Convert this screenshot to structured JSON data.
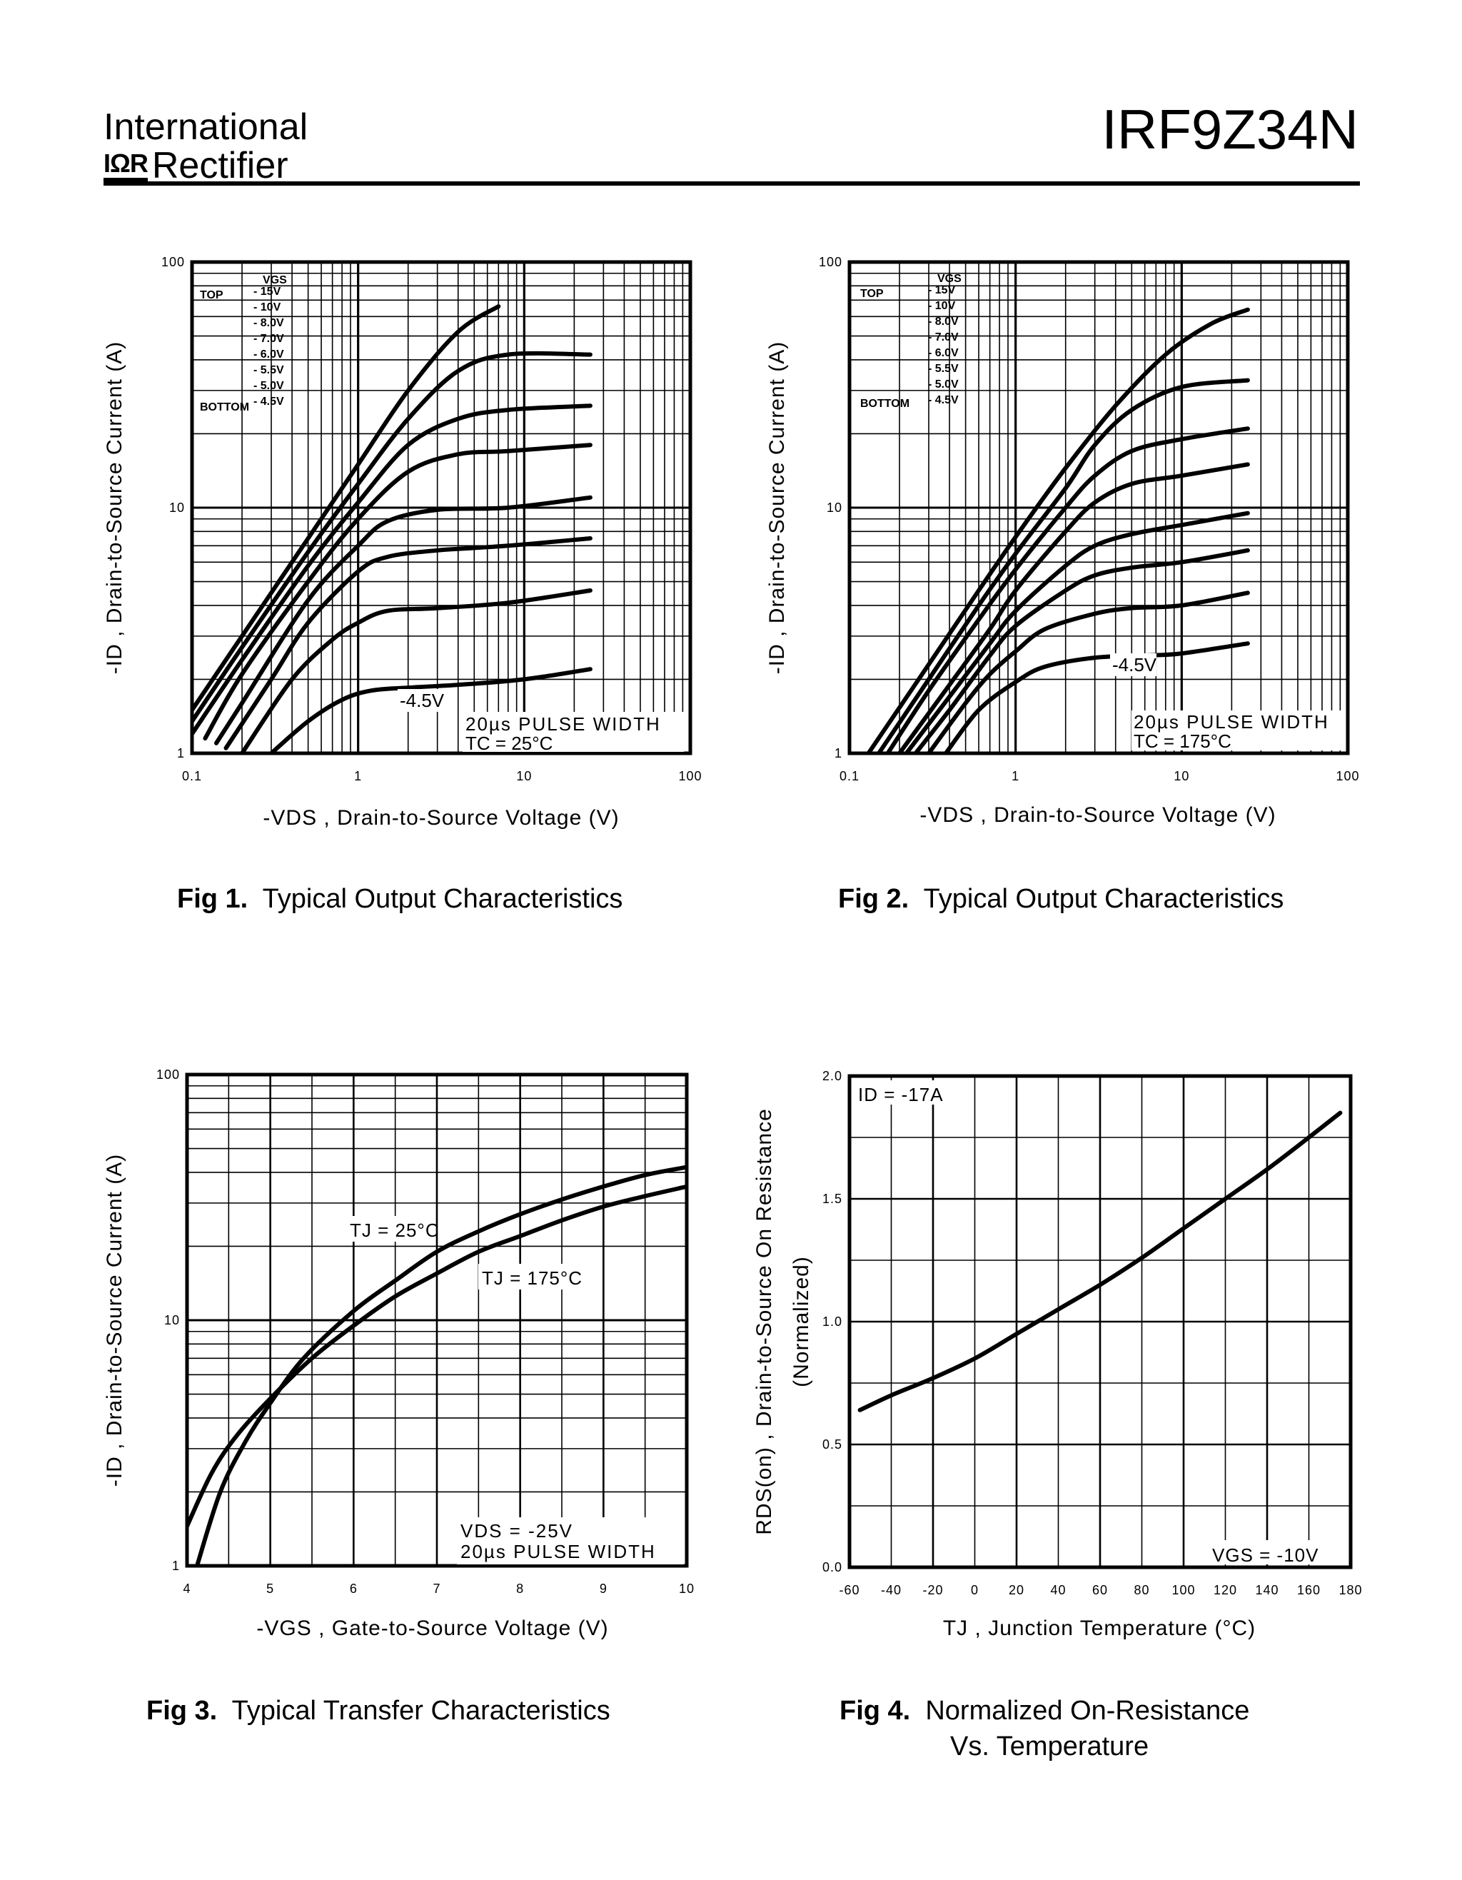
{
  "header": {
    "brand_line1": "International",
    "brand_mark": "IΩR",
    "brand_line2": "Rectifier",
    "part_number": "IRF9Z34N"
  },
  "captions": [
    {
      "fig": "Fig 1.",
      "text": "Typical Output Characteristics",
      "text2": ""
    },
    {
      "fig": "Fig 2.",
      "text": "Typical Output Characteristics",
      "text2": ""
    },
    {
      "fig": "Fig 3.",
      "text": "Typical Transfer Characteristics",
      "text2": ""
    },
    {
      "fig": "Fig 4.",
      "text": "Normalized On-Resistance",
      "text2": "Vs. Temperature"
    }
  ],
  "chart_data": [
    {
      "type": "line",
      "title": "Fig 1. Typical Output Characteristics",
      "xscale": "log",
      "yscale": "log",
      "xlim": [
        0.1,
        100
      ],
      "ylim": [
        1,
        100
      ],
      "xticks": [
        "0.1",
        "1",
        "10",
        "100"
      ],
      "yticks": [
        "1",
        "10",
        "100"
      ],
      "xlabel": "-VDS , Drain-to-Source Voltage (V)",
      "ylabel": "-ID , Drain-to-Source Current (A)",
      "legend": {
        "header": "VGS",
        "top_label": "TOP",
        "bottom_label": "BOTTOM",
        "entries": [
          "- 15V",
          "- 10V",
          "- 8.0V",
          "- 7.0V",
          "- 6.0V",
          "- 5.5V",
          "- 5.0V",
          "- 4.5V"
        ]
      },
      "annotations": [
        "-4.5V",
        "20µs PULSE WIDTH",
        "TC = 25°C"
      ],
      "series": [
        {
          "name": "-15V",
          "x": [
            0.1,
            0.2,
            0.5,
            1,
            2,
            4,
            7
          ],
          "y": [
            1.5,
            3,
            7.5,
            15,
            30,
            52,
            66
          ]
        },
        {
          "name": "-10V",
          "x": [
            0.1,
            0.2,
            0.5,
            1,
            2,
            4,
            8,
            25
          ],
          "y": [
            1.35,
            2.7,
            6.6,
            12.5,
            23,
            36,
            42,
            42
          ]
        },
        {
          "name": "-8.0V",
          "x": [
            0.1,
            0.2,
            0.5,
            1,
            2,
            4,
            8,
            25
          ],
          "y": [
            1.2,
            2.4,
            5.8,
            10.5,
            18,
            23,
            25,
            26
          ]
        },
        {
          "name": "-7.0V",
          "x": [
            0.12,
            0.2,
            0.5,
            1,
            2,
            4,
            8,
            25
          ],
          "y": [
            1.15,
            2.1,
            5.0,
            9.0,
            14,
            16.5,
            17,
            18
          ]
        },
        {
          "name": "-6.0V",
          "x": [
            0.14,
            0.2,
            0.5,
            1,
            1.5,
            3,
            8,
            25
          ],
          "y": [
            1.1,
            1.6,
            4.2,
            7.0,
            8.8,
            9.8,
            10,
            11
          ]
        },
        {
          "name": "-5.5V",
          "x": [
            0.16,
            0.3,
            0.5,
            1,
            1.5,
            3,
            8,
            25
          ],
          "y": [
            1.05,
            2.0,
            3.4,
            5.5,
            6.3,
            6.7,
            7.0,
            7.5
          ]
        },
        {
          "name": "-5.0V",
          "x": [
            0.2,
            0.4,
            0.7,
            1,
            1.5,
            3,
            8,
            25
          ],
          "y": [
            1.0,
            2.0,
            2.9,
            3.4,
            3.8,
            3.9,
            4.1,
            4.6
          ]
        },
        {
          "name": "-4.5V",
          "x": [
            0.3,
            0.5,
            0.8,
            1.2,
            2,
            4,
            10,
            25
          ],
          "y": [
            1.0,
            1.35,
            1.65,
            1.8,
            1.85,
            1.9,
            2.0,
            2.2
          ]
        }
      ]
    },
    {
      "type": "line",
      "title": "Fig 2. Typical Output Characteristics",
      "xscale": "log",
      "yscale": "log",
      "xlim": [
        0.1,
        100
      ],
      "ylim": [
        1,
        100
      ],
      "xticks": [
        "0.1",
        "1",
        "10",
        "100"
      ],
      "yticks": [
        "1",
        "10",
        "100"
      ],
      "xlabel": "-VDS , Drain-to-Source Voltage (V)",
      "ylabel": "-ID , Drain-to-Source Current (A)",
      "legend": {
        "header": "VGS",
        "top_label": "TOP",
        "bottom_label": "BOTTOM",
        "entries": [
          "- 15V",
          "- 10V",
          "- 8.0V",
          "- 7.0V",
          "- 6.0V",
          "- 5.5V",
          "- 5.0V",
          "- 4.5V"
        ]
      },
      "annotations": [
        "-4.5V",
        "20µs PULSE WIDTH",
        "TC = 175°C"
      ],
      "series": [
        {
          "name": "-15V",
          "x": [
            0.13,
            0.3,
            0.6,
            1,
            2,
            4,
            8,
            15,
            25
          ],
          "y": [
            1.0,
            2.3,
            4.6,
            7.6,
            14.5,
            26,
            42,
            56,
            64
          ]
        },
        {
          "name": "-10V",
          "x": [
            0.15,
            0.3,
            0.6,
            1,
            2,
            3,
            5,
            10,
            25
          ],
          "y": [
            1.0,
            2.0,
            4.0,
            6.5,
            12,
            18,
            25,
            31,
            33
          ]
        },
        {
          "name": "-8.0V",
          "x": [
            0.17,
            0.3,
            0.6,
            1,
            2,
            3,
            5,
            10,
            25
          ],
          "y": [
            1.0,
            1.8,
            3.5,
            5.6,
            10,
            13.5,
            17,
            19,
            21
          ]
        },
        {
          "name": "-7.0V",
          "x": [
            0.2,
            0.4,
            0.7,
            1,
            2,
            3,
            5,
            10,
            25
          ],
          "y": [
            1.0,
            1.9,
            3.2,
            4.6,
            8,
            10.5,
            12.5,
            13.5,
            15
          ]
        },
        {
          "name": "-6.0V",
          "x": [
            0.22,
            0.4,
            0.7,
            1,
            2,
            3,
            5,
            10,
            25
          ],
          "y": [
            1.0,
            1.7,
            2.8,
            3.8,
            5.8,
            7,
            7.8,
            8.5,
            9.5
          ]
        },
        {
          "name": "-5.5V",
          "x": [
            0.25,
            0.4,
            0.7,
            1,
            2,
            3,
            5,
            10,
            25
          ],
          "y": [
            1.0,
            1.5,
            2.5,
            3.3,
            4.6,
            5.3,
            5.7,
            6.0,
            6.7
          ]
        },
        {
          "name": "-5.0V",
          "x": [
            0.3,
            0.5,
            0.7,
            1,
            1.5,
            3,
            5,
            10,
            25
          ],
          "y": [
            1.0,
            1.6,
            2.1,
            2.6,
            3.2,
            3.7,
            3.9,
            4.0,
            4.5
          ]
        },
        {
          "name": "-4.5V",
          "x": [
            0.38,
            0.6,
            1,
            1.5,
            3,
            6,
            10,
            25
          ],
          "y": [
            1.0,
            1.5,
            1.95,
            2.25,
            2.45,
            2.5,
            2.55,
            2.8
          ]
        }
      ]
    },
    {
      "type": "line",
      "title": "Fig 3. Typical Transfer Characteristics",
      "xscale": "linear",
      "yscale": "log",
      "xlim": [
        4,
        10
      ],
      "ylim": [
        1,
        100
      ],
      "xticks": [
        "4",
        "5",
        "6",
        "7",
        "8",
        "9",
        "10"
      ],
      "yticks": [
        "1",
        "10",
        "100"
      ],
      "xlabel": "-VGS , Gate-to-Source Voltage (V)",
      "ylabel": "-ID , Drain-to-Source Current (A)",
      "annotations": [
        "TJ = 25°C",
        "TJ = 175°C",
        "VDS = -25V",
        "20µs PULSE WIDTH"
      ],
      "series": [
        {
          "name": "TJ = 25°C",
          "x": [
            4.12,
            4.4,
            4.7,
            5.0,
            5.4,
            6.0,
            6.5,
            7.0,
            7.5,
            8.0,
            8.5,
            9.0,
            9.5,
            10.0
          ],
          "y": [
            1.0,
            2.0,
            3.2,
            4.6,
            7.0,
            10.9,
            14.5,
            19,
            23,
            27,
            31,
            35,
            39,
            42
          ]
        },
        {
          "name": "TJ = 175°C",
          "x": [
            4.0,
            4.3,
            4.6,
            5.0,
            5.5,
            6.0,
            6.5,
            7.0,
            7.5,
            8.0,
            8.5,
            9.0,
            9.5,
            10.0
          ],
          "y": [
            1.45,
            2.4,
            3.4,
            4.8,
            7.0,
            9.5,
            12.5,
            15.5,
            19,
            22,
            25.5,
            29,
            32,
            35
          ]
        }
      ]
    },
    {
      "type": "line",
      "title": "Fig 4. Normalized On-Resistance Vs. Temperature",
      "xscale": "linear",
      "yscale": "linear",
      "xlim": [
        -60,
        180
      ],
      "ylim": [
        0.0,
        2.0
      ],
      "xticks": [
        "-60",
        "-40",
        "-20",
        "0",
        "20",
        "40",
        "60",
        "80",
        "100",
        "120",
        "140",
        "160",
        "180"
      ],
      "yticks": [
        "0.0",
        "0.5",
        "1.0",
        "1.5",
        "2.0"
      ],
      "xlabel": "TJ , Junction Temperature (°C)",
      "ylabel": "RDS(on) , Drain-to-Source On Resistance",
      "ylabel2": "(Normalized)",
      "annotations": [
        "ID = -17A",
        "VGS = -10V"
      ],
      "series": [
        {
          "name": "RDS(on) normalized",
          "x": [
            -55,
            -40,
            -20,
            0,
            20,
            40,
            60,
            80,
            100,
            120,
            140,
            160,
            175
          ],
          "y": [
            0.64,
            0.7,
            0.77,
            0.85,
            0.95,
            1.05,
            1.15,
            1.26,
            1.38,
            1.5,
            1.62,
            1.75,
            1.85
          ]
        }
      ]
    }
  ]
}
